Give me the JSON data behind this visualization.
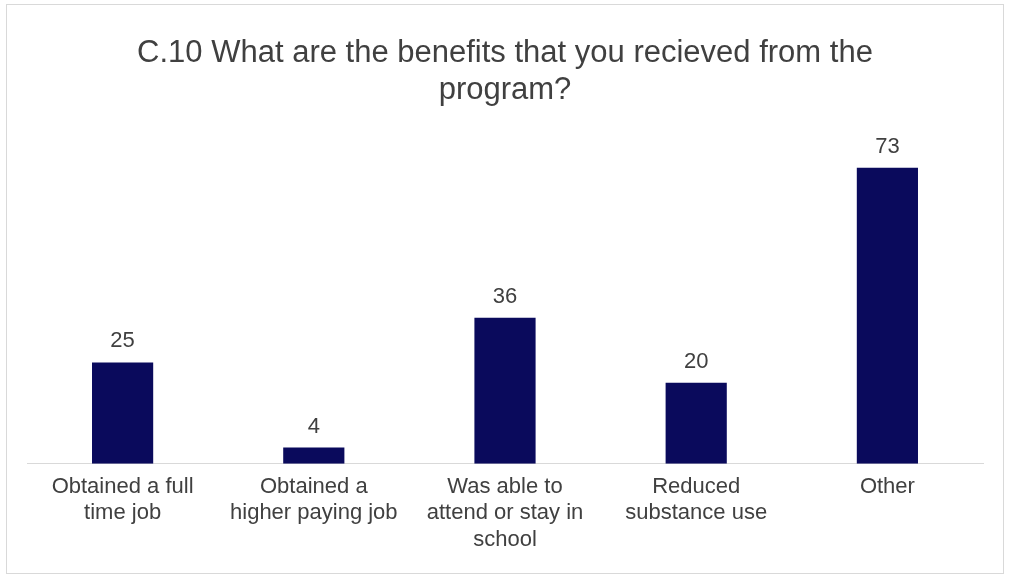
{
  "chart_data": {
    "type": "bar",
    "title": "C.10 What are the benefits that you recieved from the program?",
    "categories": [
      "Obtained a full time job",
      "Obtained a higher paying job",
      "Was able to attend or stay in school",
      "Reduced substance use",
      "Other"
    ],
    "values": [
      25,
      4,
      36,
      20,
      73
    ],
    "color": "#0a0a5c",
    "data_labels": true,
    "grid": false,
    "legend": false
  }
}
